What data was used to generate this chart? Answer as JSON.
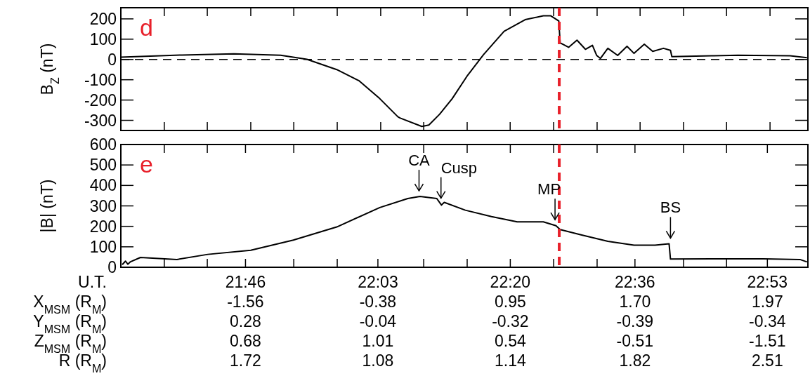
{
  "chart_data": [
    {
      "type": "line",
      "title": "d",
      "ylabel": "B$_{Z}$ (nT)",
      "tick_labels": "y",
      "xlim": [
        21.5,
        22.97
      ],
      "ylim": [
        -350,
        255
      ],
      "xticks": [
        {
          "value": 21.5,
          "label": null
        },
        {
          "value": 21.593,
          "label": null
        },
        {
          "value": 21.685,
          "label": null
        },
        {
          "value": 21.778,
          "label": null
        },
        {
          "value": 21.87,
          "label": null
        },
        {
          "value": 21.963,
          "label": null
        },
        {
          "value": 22.056,
          "label": null
        },
        {
          "value": 22.148,
          "label": null
        },
        {
          "value": 22.241,
          "label": null
        },
        {
          "value": 22.333,
          "label": null
        },
        {
          "value": 22.426,
          "label": null
        },
        {
          "value": 22.519,
          "label": null
        },
        {
          "value": 22.611,
          "label": null
        },
        {
          "value": 22.704,
          "label": null
        },
        {
          "value": 22.796,
          "label": null
        },
        {
          "value": 22.889,
          "label": null
        }
      ],
      "yticks": [
        -300,
        -200,
        -100,
        0,
        100,
        200
      ],
      "x": [
        21.5,
        21.631,
        21.742,
        21.842,
        21.898,
        21.962,
        22.009,
        22.054,
        22.093,
        22.098,
        22.144,
        22.159,
        22.182,
        22.209,
        22.242,
        22.276,
        22.32,
        22.365,
        22.404,
        22.42,
        22.437,
        22.44,
        22.458,
        22.476,
        22.494,
        22.509,
        22.518,
        22.526,
        22.542,
        22.563,
        22.583,
        22.598,
        22.62,
        22.638,
        22.661,
        22.676,
        22.679,
        22.764,
        22.82,
        22.932,
        22.968
      ],
      "series": [
        {
          "color": "#000000",
          "values": [
            11,
            22,
            28,
            21,
            1,
            -50,
            -104,
            -193,
            -283,
            -289,
            -330,
            -323,
            -270,
            -193,
            -78,
            24,
            139,
            196,
            215,
            215,
            190,
            82,
            60,
            95,
            50,
            70,
            20,
            5,
            55,
            20,
            65,
            30,
            75,
            40,
            55,
            45,
            14,
            18,
            21,
            18,
            9
          ]
        }
      ],
      "ref_lines": [
        {
          "axis": "y",
          "value": 0,
          "color": "#000000",
          "line_style": "dashed"
        },
        {
          "axis": "x",
          "value": 22.438,
          "color": "#e8202a",
          "line_style": "dashed"
        }
      ]
    },
    {
      "type": "line",
      "title": "e",
      "ylabel": "|B| (nT)",
      "xlim": [
        21.5,
        22.97
      ],
      "ylim": [
        0,
        600
      ],
      "xticks": [
        {
          "value": 21.5,
          "label": null
        },
        {
          "value": 21.593,
          "label": null
        },
        {
          "value": 21.685,
          "label": null
        },
        {
          "value": 21.7667,
          "label": "21:46"
        },
        {
          "value": 21.87,
          "label": null
        },
        {
          "value": 21.963,
          "label": null
        },
        {
          "value": 22.05,
          "label": "22:03"
        },
        {
          "value": 22.148,
          "label": null
        },
        {
          "value": 22.241,
          "label": null
        },
        {
          "value": 22.3333,
          "label": "22:20"
        },
        {
          "value": 22.426,
          "label": null
        },
        {
          "value": 22.519,
          "label": null
        },
        {
          "value": 22.6,
          "label": "22:36"
        },
        {
          "value": 22.704,
          "label": null
        },
        {
          "value": 22.796,
          "label": null
        },
        {
          "value": 22.8833,
          "label": "22:53"
        }
      ],
      "yticks": [
        0,
        100,
        200,
        300,
        400,
        500,
        600
      ],
      "x": [
        21.503,
        21.51,
        21.515,
        21.52,
        21.542,
        21.62,
        21.686,
        21.778,
        21.869,
        21.962,
        22.054,
        22.114,
        22.14,
        22.176,
        22.186,
        22.192,
        22.237,
        22.293,
        22.348,
        22.404,
        22.431,
        22.44,
        22.486,
        22.542,
        22.598,
        22.643,
        22.673,
        22.676,
        22.764,
        22.875,
        22.953,
        22.968
      ],
      "series": [
        {
          "color": "#000000",
          "values": [
            13,
            30,
            15,
            26,
            48,
            38,
            63,
            83,
            133,
            197,
            292,
            336,
            346,
            336,
            304,
            317,
            279,
            248,
            222,
            222,
            203,
            184,
            158,
            127,
            108,
            108,
            115,
            40,
            41,
            41,
            38,
            26
          ]
        }
      ],
      "ref_lines": [
        {
          "axis": "x",
          "value": 22.438,
          "color": "#e8202a",
          "line_style": "dashed"
        }
      ],
      "annotations": [
        {
          "text": "CA",
          "x": 22.138,
          "y": 346
        },
        {
          "text": "Cusp",
          "x": 22.185,
          "y": 310
        },
        {
          "text": "MP",
          "x": 22.429,
          "y": 205
        },
        {
          "text": "BS",
          "x": 22.676,
          "y": 115
        },
        "U.T.",
        "X$_{MSM}$ (R$_{M}$)",
        "-1.56",
        "-0.38",
        "0.95",
        "1.70",
        "1.97",
        "Y$_{MSM}$ (R$_{M}$)",
        "0.28",
        "-0.04",
        "-0.32",
        "-0.39",
        "-0.34",
        "Z$_{MSM}$ (R$_{M}$)",
        "0.68",
        "1.01",
        "0.54",
        "-0.51",
        "-1.51",
        "R (R$_{M}$)",
        "1.72",
        "1.08",
        "1.14",
        "1.82",
        "2.51"
      ]
    }
  ]
}
